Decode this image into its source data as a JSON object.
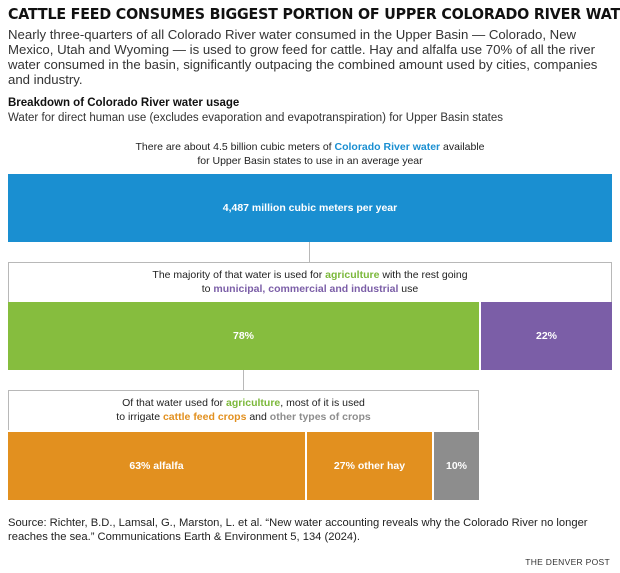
{
  "header": {
    "title": "CATTLE FEED CONSUMES BIGGEST PORTION OF UPPER COLORADO RIVER WATER",
    "lede": "Nearly three-quarters of all Colorado River water consumed in the Upper Basin — Colorado, New Mexico, Utah and Wyoming — is used to grow feed for cattle. Hay and alfalfa use 70% of all the river water consumed in the basin, significantly outpacing the combined amount used by cities, companies and industry.",
    "chart_title": "Breakdown of Colorado River water usage",
    "chart_subtitle": "Water for direct human use (excludes evaporation and evapotranspiration) for Upper Basin states"
  },
  "intro": {
    "line1_pre": "There are about 4.5 billion cubic meters of ",
    "line1_hl": "Colorado River water",
    "line1_post": " available",
    "line2": "for Upper Basin states to use in an average year"
  },
  "step2": {
    "line1_pre": "The majority of that water is used for ",
    "line1_hl": "agriculture",
    "line1_post": " with the rest going",
    "line2_pre": "to ",
    "line2_hl": "municipal, commercial and industrial",
    "line2_post": " use"
  },
  "step3": {
    "line1_pre": "Of that water used for ",
    "line1_hl": "agriculture",
    "line1_post": ", most of it is used",
    "line2_pre": "to irrigate ",
    "line2_hl1": "cattle feed crops",
    "line2_mid": " and ",
    "line2_hl2": "other types of crops"
  },
  "chart_data": {
    "type": "bar",
    "levels": [
      {
        "level": "total",
        "segments": [
          {
            "label": "4,487 million cubic meters per year",
            "value": 4487,
            "color": "#1a8fd1"
          }
        ]
      },
      {
        "level": "use",
        "segments": [
          {
            "label": "78%",
            "value": 78,
            "color": "#86bd3e"
          },
          {
            "label": "22%",
            "value": 22,
            "color": "#7b5ea7"
          }
        ]
      },
      {
        "level": "agriculture",
        "segments": [
          {
            "label": "63% alfalfa",
            "value": 63,
            "color": "#e2901f"
          },
          {
            "label": "27% other hay",
            "value": 27,
            "color": "#e2901f"
          },
          {
            "label": "10%",
            "value": 10,
            "color": "#8d8d8d"
          }
        ]
      }
    ]
  },
  "footer": {
    "source": "Source: Richter, B.D., Lamsal, G., Marston, L. et al. “New water accounting reveals why the Colorado River no longer reaches the sea.” Communications Earth & Environment 5, 134 (2024).",
    "credit": "THE DENVER POST"
  }
}
